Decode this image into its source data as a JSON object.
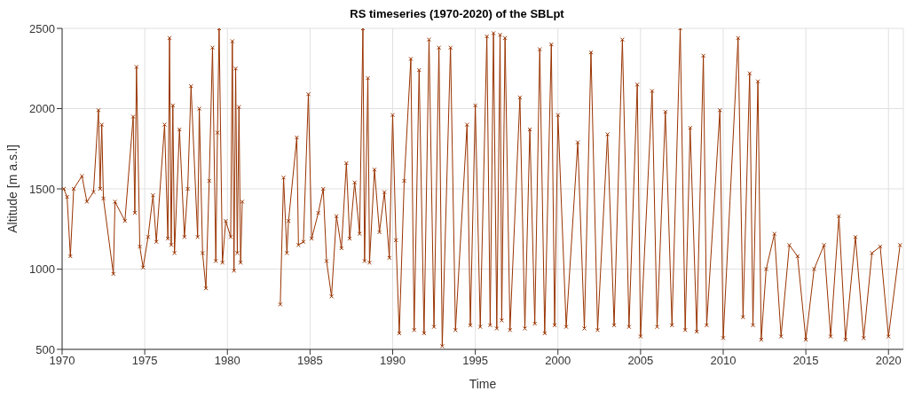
{
  "chart_data": {
    "type": "line",
    "title": "RS timeseries (1970-2020) of the SBLpt",
    "xlabel": "Time",
    "ylabel": "Altitude [m a.s.l]",
    "xlim": [
      1970,
      2020.9
    ],
    "xticks": [
      1970,
      1975,
      1980,
      1985,
      1990,
      1995,
      2000,
      2005,
      2010,
      2015,
      2020
    ],
    "ylim": [
      500,
      2500
    ],
    "yticks": [
      500,
      1000,
      1500,
      2000,
      2500
    ],
    "grid": true,
    "marker": "cross",
    "line_style": "solid",
    "x": [
      1970.1,
      1970.3,
      1970.5,
      1970.7,
      1971.2,
      1971.5,
      1971.9,
      1972.2,
      1972.3,
      1972.4,
      1972.5,
      1973.1,
      1973.2,
      1973.8,
      1974.3,
      1974.4,
      1974.5,
      1974.7,
      1974.9,
      1975.2,
      1975.5,
      1975.7,
      1976.2,
      1976.4,
      1976.5,
      1976.6,
      1976.7,
      1976.8,
      1977.1,
      1977.4,
      1977.6,
      1977.8,
      1978.2,
      1978.3,
      1978.5,
      1978.7,
      1978.9,
      1979.1,
      1979.3,
      1979.4,
      1979.5,
      1979.7,
      1979.9,
      1980.2,
      1980.3,
      1980.4,
      1980.5,
      1980.6,
      1980.7,
      1980.8,
      1980.9,
      1982.0,
      1983.2,
      1983.4,
      1983.6,
      1983.7,
      1984.2,
      1984.3,
      1984.6,
      1984.9,
      1985.1,
      1985.5,
      1985.8,
      1986.0,
      1986.3,
      1986.6,
      1986.9,
      1987.2,
      1987.4,
      1987.7,
      1988.0,
      1988.2,
      1988.3,
      1988.5,
      1988.6,
      1988.9,
      1989.2,
      1989.5,
      1989.8,
      1990.0,
      1990.2,
      1990.4,
      1990.7,
      1991.1,
      1991.3,
      1991.6,
      1991.9,
      1992.2,
      1992.5,
      1992.8,
      1993.0,
      1993.5,
      1993.8,
      1994.5,
      1994.7,
      1995.0,
      1995.3,
      1995.7,
      1995.9,
      1996.1,
      1996.3,
      1996.5,
      1996.6,
      1996.8,
      1997.1,
      1997.7,
      1998.0,
      1998.3,
      1998.6,
      1998.9,
      1999.2,
      1999.6,
      1999.8,
      2000.0,
      2000.5,
      2001.2,
      2001.6,
      2002.0,
      2002.4,
      2003.0,
      2003.4,
      2003.9,
      2004.3,
      2004.8,
      2005.0,
      2005.7,
      2006.0,
      2006.5,
      2006.9,
      2007.4,
      2007.7,
      2008.0,
      2008.4,
      2008.8,
      2009.0,
      2009.8,
      2010.0,
      2010.9,
      2011.2,
      2011.6,
      2011.8,
      2012.1,
      2012.3,
      2012.6,
      2013.1,
      2013.5,
      2014.0,
      2014.5,
      2015.0,
      2015.5,
      2016.1,
      2016.5,
      2017.0,
      2017.4,
      2018.0,
      2018.5,
      2019.0,
      2019.5,
      2020.0,
      2020.7
    ],
    "series": [
      {
        "color": "#993300",
        "values": [
          1500,
          1450,
          1080,
          1500,
          1580,
          1420,
          1480,
          1990,
          1500,
          1900,
          1440,
          970,
          1420,
          1300,
          1950,
          1350,
          2260,
          1140,
          1010,
          1200,
          1460,
          1170,
          1900,
          1190,
          2440,
          1150,
          2020,
          1100,
          1870,
          1200,
          1500,
          2140,
          1200,
          2000,
          1100,
          880,
          1550,
          2380,
          1050,
          1850,
          2500,
          1040,
          1300,
          1200,
          2420,
          990,
          2250,
          1100,
          2010,
          1040,
          1420,
          null,
          780,
          1570,
          1100,
          1300,
          1820,
          1150,
          1170,
          2090,
          1190,
          1350,
          1500,
          1050,
          830,
          1330,
          1130,
          1660,
          1190,
          1540,
          1220,
          2500,
          1050,
          2190,
          1040,
          1620,
          1230,
          1480,
          1070,
          1960,
          1180,
          600,
          1550,
          2310,
          620,
          2240,
          600,
          2430,
          640,
          2380,
          520,
          2380,
          620,
          1900,
          650,
          2020,
          640,
          2450,
          650,
          2470,
          630,
          2460,
          680,
          2440,
          620,
          2070,
          630,
          1870,
          660,
          2370,
          600,
          2400,
          650,
          1960,
          640,
          1790,
          630,
          2350,
          620,
          1840,
          650,
          2430,
          640,
          2150,
          580,
          2110,
          640,
          1980,
          650,
          2500,
          620,
          1880,
          610,
          2330,
          650,
          1990,
          570,
          2440,
          700,
          2220,
          650,
          2170,
          560,
          1000,
          1220,
          580,
          1150,
          1080,
          560,
          1000,
          1150,
          580,
          1330,
          560,
          1200,
          570,
          1100,
          1140,
          580,
          1150
        ]
      }
    ]
  }
}
